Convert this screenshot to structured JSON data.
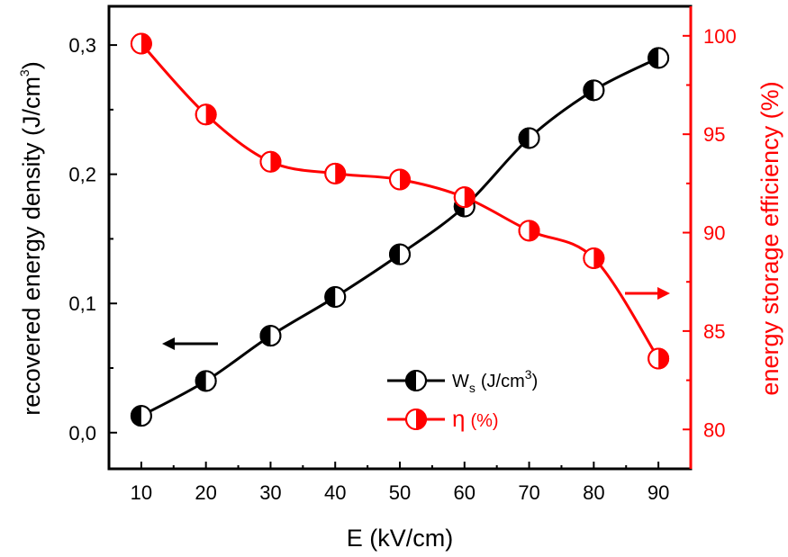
{
  "chart_data": {
    "type": "line",
    "x": [
      10,
      20,
      30,
      40,
      50,
      60,
      70,
      80,
      90
    ],
    "xlabel": "E (kV/cm)",
    "xticks": [
      "10",
      "20",
      "30",
      "40",
      "50",
      "60",
      "70",
      "80",
      "90"
    ],
    "xlim": [
      5,
      95
    ],
    "left_axis": {
      "label": "recovered energy density (J/cm",
      "label_superscript": "3",
      "label_close": ")",
      "ylim": [
        -0.028,
        0.33
      ],
      "ticks": [
        0.0,
        0.1,
        0.2,
        0.3
      ],
      "tick_labels": [
        "0,0",
        "0,1",
        "0,2",
        "0,3"
      ],
      "color": "#000000"
    },
    "right_axis": {
      "label": "energy storage efficiency (%)",
      "ylim": [
        78,
        101.5
      ],
      "ticks": [
        80,
        85,
        90,
        95,
        100
      ],
      "tick_labels": [
        "80",
        "85",
        "90",
        "95",
        "100"
      ],
      "color": "#ff0000"
    },
    "series": [
      {
        "name": "W_s (J/cm^3)",
        "axis": "left",
        "color": "#000000",
        "values": [
          0.013,
          0.04,
          0.075,
          0.105,
          0.138,
          0.175,
          0.228,
          0.265,
          0.29
        ]
      },
      {
        "name": "η (%)",
        "axis": "right",
        "color": "#ff0000",
        "values": [
          99.6,
          96.0,
          93.6,
          93.0,
          92.7,
          91.8,
          90.1,
          88.7,
          83.6
        ]
      }
    ],
    "legend": {
      "position": "bottom-right",
      "w_main": "W",
      "w_sub": "s",
      "w_unit": "(J/cm",
      "w_sup": "3",
      "w_close": ")",
      "eta_symbol": "η",
      "eta_unit": "(%)"
    },
    "annotations": [
      {
        "type": "arrow",
        "direction": "left",
        "color": "#000000",
        "target": "left axis"
      },
      {
        "type": "arrow",
        "direction": "right",
        "color": "#ff0000",
        "target": "right axis"
      }
    ]
  }
}
